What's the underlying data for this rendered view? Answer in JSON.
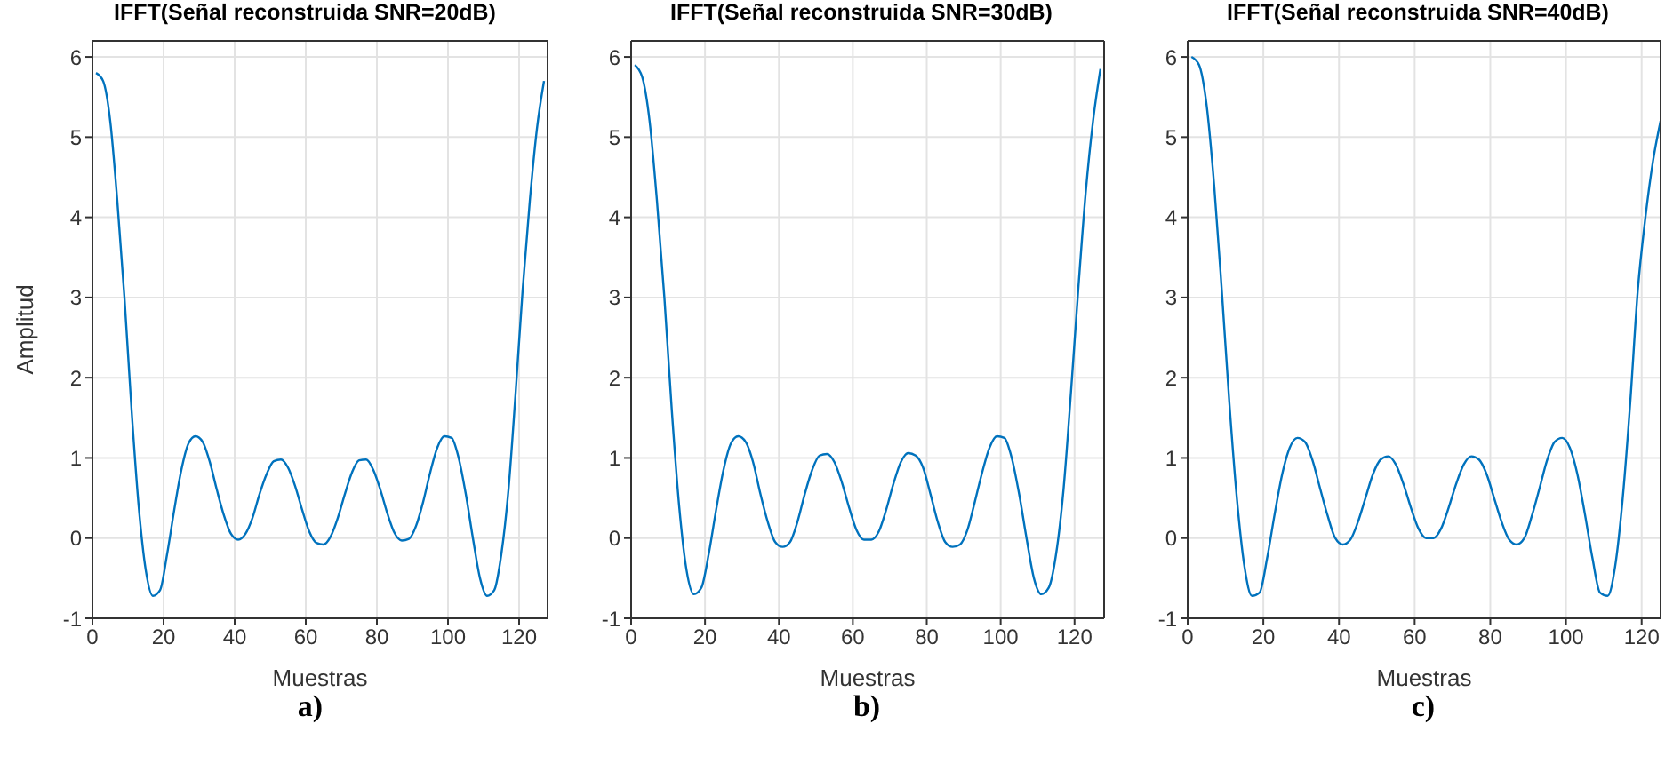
{
  "chart_data": [
    {
      "type": "line",
      "title": "IFFT(Señal reconstruida SNR=20dB)",
      "xlabel": "Muestras",
      "ylabel": "Amplitud",
      "annotations": [
        "a)"
      ],
      "xlim": [
        0,
        128
      ],
      "ylim": [
        -1,
        6.2
      ],
      "xticks": [
        0,
        20,
        40,
        60,
        80,
        100,
        120
      ],
      "yticks": [
        -1,
        0,
        1,
        2,
        3,
        4,
        5,
        6
      ],
      "grid": true,
      "x": [
        1,
        3,
        5,
        7,
        9,
        11,
        13,
        15,
        17,
        19,
        21,
        23,
        25,
        27,
        29,
        31,
        33,
        35,
        37,
        39,
        41,
        43,
        45,
        47,
        49,
        51,
        53,
        55,
        57,
        59,
        61,
        63,
        65,
        67,
        69,
        71,
        73,
        75,
        77,
        79,
        81,
        83,
        85,
        87,
        89,
        91,
        93,
        95,
        97,
        99,
        101,
        103,
        105,
        107,
        109,
        111,
        113,
        115,
        117,
        119,
        121,
        123,
        125,
        127
      ],
      "series": [
        {
          "color": "#0072bd",
          "values": [
            5.8,
            5.7,
            5.2,
            4.2,
            3.0,
            1.6,
            0.4,
            -0.4,
            -0.72,
            -0.65,
            -0.2,
            0.35,
            0.85,
            1.18,
            1.27,
            1.2,
            0.95,
            0.6,
            0.28,
            0.05,
            -0.02,
            0.05,
            0.25,
            0.55,
            0.8,
            0.96,
            0.98,
            0.88,
            0.65,
            0.35,
            0.08,
            -0.06,
            -0.08,
            0.02,
            0.25,
            0.55,
            0.82,
            0.97,
            0.98,
            0.85,
            0.6,
            0.3,
            0.06,
            -0.03,
            -0.01,
            0.15,
            0.45,
            0.82,
            1.13,
            1.27,
            1.25,
            1.0,
            0.55,
            0.0,
            -0.5,
            -0.72,
            -0.65,
            -0.2,
            0.6,
            1.8,
            3.1,
            4.2,
            5.1,
            5.7
          ]
        }
      ]
    },
    {
      "type": "line",
      "title": "IFFT(Señal reconstruida SNR=30dB)",
      "xlabel": "Muestras",
      "annotations": [
        "b)"
      ],
      "xlim": [
        0,
        128
      ],
      "ylim": [
        -1,
        6.2
      ],
      "xticks": [
        0,
        20,
        40,
        60,
        80,
        100,
        120
      ],
      "yticks": [
        -1,
        0,
        1,
        2,
        3,
        4,
        5,
        6
      ],
      "grid": true,
      "x": [
        1,
        3,
        5,
        7,
        9,
        11,
        13,
        15,
        17,
        19,
        21,
        23,
        25,
        27,
        29,
        31,
        33,
        35,
        37,
        39,
        41,
        43,
        45,
        47,
        49,
        51,
        53,
        55,
        57,
        59,
        61,
        63,
        65,
        67,
        69,
        71,
        73,
        75,
        77,
        79,
        81,
        83,
        85,
        87,
        89,
        91,
        93,
        95,
        97,
        99,
        101,
        103,
        105,
        107,
        109,
        111,
        113,
        115,
        117,
        119,
        121,
        123,
        125,
        127
      ],
      "series": [
        {
          "color": "#0072bd",
          "values": [
            5.9,
            5.75,
            5.2,
            4.2,
            3.0,
            1.6,
            0.4,
            -0.4,
            -0.7,
            -0.62,
            -0.2,
            0.35,
            0.85,
            1.18,
            1.27,
            1.2,
            0.95,
            0.55,
            0.2,
            -0.05,
            -0.11,
            -0.05,
            0.2,
            0.55,
            0.85,
            1.03,
            1.05,
            0.95,
            0.7,
            0.38,
            0.1,
            -0.02,
            -0.02,
            0.08,
            0.35,
            0.68,
            0.95,
            1.06,
            1.03,
            0.88,
            0.55,
            0.2,
            -0.05,
            -0.11,
            -0.08,
            0.1,
            0.45,
            0.82,
            1.13,
            1.27,
            1.25,
            1.0,
            0.55,
            0.0,
            -0.5,
            -0.7,
            -0.62,
            -0.2,
            0.6,
            1.8,
            3.1,
            4.3,
            5.2,
            5.85
          ]
        }
      ]
    },
    {
      "type": "line",
      "title": "IFFT(Señal reconstruida SNR=40dB)",
      "xlabel": "Muestras",
      "annotations": [
        "c)"
      ],
      "xlim": [
        0,
        125
      ],
      "ylim": [
        -1,
        6.2
      ],
      "xticks": [
        0,
        20,
        40,
        60,
        80,
        100,
        120
      ],
      "yticks": [
        -1,
        0,
        1,
        2,
        3,
        4,
        5,
        6
      ],
      "grid": true,
      "x": [
        1,
        3,
        5,
        7,
        9,
        11,
        13,
        15,
        17,
        19,
        21,
        23,
        25,
        27,
        29,
        31,
        33,
        35,
        37,
        39,
        41,
        43,
        45,
        47,
        49,
        51,
        53,
        55,
        57,
        59,
        61,
        63,
        65,
        67,
        69,
        71,
        73,
        75,
        77,
        79,
        81,
        83,
        85,
        87,
        89,
        91,
        93,
        95,
        97,
        99,
        101,
        103,
        105,
        107,
        109,
        111,
        113,
        115,
        117,
        119,
        121,
        123,
        125
      ],
      "series": [
        {
          "color": "#0072bd",
          "values": [
            6.0,
            5.9,
            5.4,
            4.4,
            3.1,
            1.7,
            0.5,
            -0.35,
            -0.72,
            -0.68,
            -0.25,
            0.3,
            0.8,
            1.13,
            1.25,
            1.2,
            0.97,
            0.62,
            0.28,
            0.0,
            -0.08,
            -0.02,
            0.2,
            0.5,
            0.8,
            0.98,
            1.02,
            0.92,
            0.68,
            0.38,
            0.12,
            0.0,
            0.0,
            0.12,
            0.38,
            0.68,
            0.92,
            1.02,
            0.98,
            0.8,
            0.5,
            0.2,
            -0.02,
            -0.08,
            0.0,
            0.28,
            0.62,
            0.97,
            1.2,
            1.25,
            1.13,
            0.8,
            0.3,
            -0.25,
            -0.68,
            -0.72,
            -0.35,
            0.5,
            1.7,
            3.1,
            4.0,
            4.7,
            5.2
          ]
        }
      ]
    }
  ]
}
